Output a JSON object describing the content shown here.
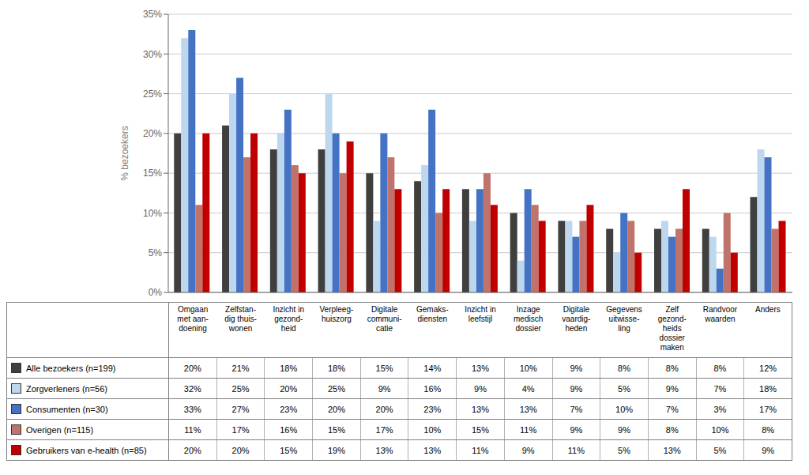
{
  "chart_data": {
    "type": "bar",
    "categories": [
      "Omgaan\nmet aan-\ndoening",
      "Zelfstan-\ndig thuis-\nwonen",
      "Inzicht in\ngezond-\nheid",
      "Verpleeg-\nhuiszorg",
      "Digitale\ncommuni-\ncatie",
      "Gemaks-\ndiensten",
      "Inzicht in\nleefstijl",
      "Inzage\nmedisch\ndossier",
      "Digitale\nvaardig-\nheden",
      "Gegevens\nuitwisse-\nling",
      "Zelf\ngezond-\nheids\ndossier\nmaken",
      "Randvoor\nwaarden",
      "Anders"
    ],
    "series": [
      {
        "name": "Alle bezoekers (n=199)",
        "color": "#3f3f3f",
        "values": [
          20,
          21,
          18,
          18,
          15,
          14,
          13,
          10,
          9,
          8,
          8,
          8,
          12
        ],
        "value_labels": [
          "20%",
          "21%",
          "18%",
          "18%",
          "15%",
          "14%",
          "13%",
          "10%",
          "9%",
          "8%",
          "8%",
          "8%",
          "12%"
        ]
      },
      {
        "name": "Zorgverleners (n=56)",
        "color": "#bdd7ee",
        "values": [
          32,
          25,
          20,
          25,
          9,
          16,
          9,
          4,
          9,
          5,
          9,
          7,
          18
        ],
        "value_labels": [
          "32%",
          "25%",
          "20%",
          "25%",
          "9%",
          "16%",
          "9%",
          "4%",
          "9%",
          "5%",
          "9%",
          "7%",
          "18%"
        ]
      },
      {
        "name": "Consumenten (n=30)",
        "color": "#4472c4",
        "values": [
          33,
          27,
          23,
          20,
          20,
          23,
          13,
          13,
          7,
          10,
          7,
          3,
          17
        ],
        "value_labels": [
          "33%",
          "27%",
          "23%",
          "20%",
          "20%",
          "23%",
          "13%",
          "13%",
          "7%",
          "10%",
          "7%",
          "3%",
          "17%"
        ]
      },
      {
        "name": "Overigen (n=115)",
        "color": "#c0736a",
        "values": [
          11,
          17,
          16,
          15,
          17,
          10,
          15,
          11,
          9,
          9,
          8,
          10,
          8
        ],
        "value_labels": [
          "11%",
          "17%",
          "16%",
          "15%",
          "17%",
          "10%",
          "15%",
          "11%",
          "9%",
          "9%",
          "8%",
          "10%",
          "8%"
        ]
      },
      {
        "name": "Gebruikers van e-health (n=85)",
        "color": "#c00000",
        "values": [
          20,
          20,
          15,
          19,
          13,
          13,
          11,
          9,
          11,
          5,
          13,
          5,
          9
        ],
        "value_labels": [
          "20%",
          "20%",
          "15%",
          "19%",
          "13%",
          "13%",
          "11%",
          "9%",
          "11%",
          "5%",
          "13%",
          "5%",
          "9%"
        ]
      }
    ],
    "ylabel": "% bezoekers",
    "ylim": [
      0,
      35
    ],
    "yticks": [
      {
        "value": 0,
        "label": "0%"
      },
      {
        "value": 5,
        "label": "5%"
      },
      {
        "value": 10,
        "label": "10%"
      },
      {
        "value": 15,
        "label": "15%"
      },
      {
        "value": 20,
        "label": "20%"
      },
      {
        "value": 25,
        "label": "25%"
      },
      {
        "value": 30,
        "label": "30%"
      },
      {
        "value": 35,
        "label": "35%"
      }
    ],
    "grid": true,
    "tick_labels": "y"
  }
}
